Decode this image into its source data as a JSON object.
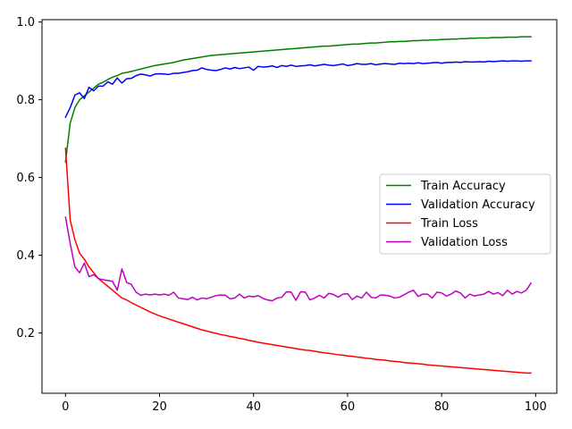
{
  "chart_data": {
    "type": "line",
    "title": "",
    "xlabel": "",
    "ylabel": "",
    "xlim": [
      -5,
      104.5
    ],
    "ylim": [
      0.045,
      1.006
    ],
    "xticks": [
      0,
      20,
      40,
      60,
      80,
      100
    ],
    "yticks": [
      0.2,
      0.4,
      0.6,
      0.8,
      1.0
    ],
    "xtick_labels": [
      "0",
      "20",
      "40",
      "60",
      "80",
      "100"
    ],
    "ytick_labels": [
      "0.2",
      "0.4",
      "0.6",
      "0.8",
      "1.0"
    ],
    "grid": false,
    "legend_position": "center-right",
    "x": [
      0,
      1,
      2,
      3,
      4,
      5,
      6,
      7,
      8,
      9,
      10,
      11,
      12,
      13,
      14,
      15,
      16,
      17,
      18,
      19,
      20,
      21,
      22,
      23,
      24,
      25,
      26,
      27,
      28,
      29,
      30,
      31,
      32,
      33,
      34,
      35,
      36,
      37,
      38,
      39,
      40,
      41,
      42,
      43,
      44,
      45,
      46,
      47,
      48,
      49,
      50,
      51,
      52,
      53,
      54,
      55,
      56,
      57,
      58,
      59,
      60,
      61,
      62,
      63,
      64,
      65,
      66,
      67,
      68,
      69,
      70,
      71,
      72,
      73,
      74,
      75,
      76,
      77,
      78,
      79,
      80,
      81,
      82,
      83,
      84,
      85,
      86,
      87,
      88,
      89,
      90,
      91,
      92,
      93,
      94,
      95,
      96,
      97,
      98,
      99
    ],
    "series": [
      {
        "name": "Train Accuracy",
        "color": "#008000",
        "values": [
          0.64,
          0.74,
          0.78,
          0.8,
          0.81,
          0.82,
          0.83,
          0.84,
          0.845,
          0.852,
          0.858,
          0.862,
          0.868,
          0.87,
          0.873,
          0.876,
          0.879,
          0.882,
          0.885,
          0.888,
          0.89,
          0.892,
          0.894,
          0.896,
          0.899,
          0.902,
          0.904,
          0.906,
          0.908,
          0.91,
          0.912,
          0.914,
          0.915,
          0.916,
          0.917,
          0.918,
          0.919,
          0.92,
          0.921,
          0.922,
          0.923,
          0.924,
          0.925,
          0.926,
          0.927,
          0.928,
          0.929,
          0.93,
          0.931,
          0.932,
          0.933,
          0.934,
          0.935,
          0.936,
          0.937,
          0.938,
          0.938,
          0.939,
          0.94,
          0.941,
          0.942,
          0.943,
          0.943,
          0.944,
          0.945,
          0.946,
          0.946,
          0.947,
          0.948,
          0.949,
          0.949,
          0.95,
          0.95,
          0.951,
          0.952,
          0.952,
          0.953,
          0.953,
          0.954,
          0.954,
          0.955,
          0.955,
          0.956,
          0.956,
          0.957,
          0.957,
          0.958,
          0.958,
          0.959,
          0.959,
          0.959,
          0.96,
          0.96,
          0.96,
          0.961,
          0.961,
          0.961,
          0.962,
          0.962,
          0.962
        ]
      },
      {
        "name": "Validation Accuracy",
        "color": "#0000ff",
        "values": [
          0.755,
          0.78,
          0.812,
          0.818,
          0.803,
          0.832,
          0.823,
          0.835,
          0.835,
          0.846,
          0.84,
          0.856,
          0.843,
          0.854,
          0.855,
          0.862,
          0.866,
          0.864,
          0.861,
          0.866,
          0.867,
          0.866,
          0.865,
          0.868,
          0.868,
          0.87,
          0.872,
          0.875,
          0.876,
          0.882,
          0.878,
          0.876,
          0.875,
          0.878,
          0.882,
          0.879,
          0.883,
          0.88,
          0.882,
          0.884,
          0.876,
          0.886,
          0.884,
          0.885,
          0.887,
          0.883,
          0.888,
          0.886,
          0.889,
          0.886,
          0.887,
          0.888,
          0.89,
          0.887,
          0.889,
          0.891,
          0.889,
          0.888,
          0.89,
          0.892,
          0.888,
          0.89,
          0.893,
          0.891,
          0.891,
          0.893,
          0.89,
          0.892,
          0.893,
          0.892,
          0.891,
          0.894,
          0.893,
          0.894,
          0.893,
          0.895,
          0.893,
          0.894,
          0.895,
          0.896,
          0.894,
          0.896,
          0.896,
          0.897,
          0.896,
          0.898,
          0.897,
          0.897,
          0.898,
          0.897,
          0.899,
          0.898,
          0.899,
          0.9,
          0.899,
          0.9,
          0.9,
          0.899,
          0.9,
          0.9
        ]
      },
      {
        "name": "Train Loss",
        "color": "#ff0000",
        "values": [
          0.675,
          0.49,
          0.44,
          0.405,
          0.39,
          0.37,
          0.355,
          0.34,
          0.33,
          0.32,
          0.31,
          0.3,
          0.29,
          0.285,
          0.278,
          0.272,
          0.266,
          0.26,
          0.254,
          0.249,
          0.244,
          0.24,
          0.236,
          0.232,
          0.228,
          0.224,
          0.22,
          0.216,
          0.212,
          0.208,
          0.205,
          0.202,
          0.199,
          0.196,
          0.194,
          0.191,
          0.189,
          0.186,
          0.184,
          0.181,
          0.179,
          0.176,
          0.174,
          0.172,
          0.17,
          0.168,
          0.166,
          0.164,
          0.162,
          0.16,
          0.158,
          0.156,
          0.155,
          0.153,
          0.151,
          0.149,
          0.148,
          0.146,
          0.144,
          0.143,
          0.141,
          0.14,
          0.138,
          0.137,
          0.135,
          0.134,
          0.132,
          0.131,
          0.13,
          0.128,
          0.127,
          0.126,
          0.124,
          0.123,
          0.122,
          0.121,
          0.12,
          0.118,
          0.117,
          0.116,
          0.115,
          0.114,
          0.113,
          0.112,
          0.111,
          0.11,
          0.109,
          0.108,
          0.107,
          0.106,
          0.105,
          0.104,
          0.103,
          0.102,
          0.101,
          0.1,
          0.099,
          0.098,
          0.097,
          0.097
        ]
      },
      {
        "name": "Validation Loss",
        "color": "#bf00bf",
        "values": [
          0.498,
          0.43,
          0.37,
          0.355,
          0.38,
          0.345,
          0.35,
          0.34,
          0.337,
          0.335,
          0.333,
          0.31,
          0.365,
          0.33,
          0.325,
          0.305,
          0.297,
          0.3,
          0.298,
          0.3,
          0.298,
          0.3,
          0.297,
          0.305,
          0.29,
          0.288,
          0.286,
          0.292,
          0.285,
          0.29,
          0.288,
          0.292,
          0.296,
          0.298,
          0.297,
          0.288,
          0.29,
          0.3,
          0.29,
          0.295,
          0.293,
          0.296,
          0.289,
          0.285,
          0.283,
          0.29,
          0.292,
          0.306,
          0.305,
          0.284,
          0.306,
          0.305,
          0.285,
          0.29,
          0.297,
          0.29,
          0.302,
          0.299,
          0.292,
          0.3,
          0.301,
          0.286,
          0.295,
          0.29,
          0.305,
          0.292,
          0.29,
          0.298,
          0.297,
          0.295,
          0.29,
          0.292,
          0.298,
          0.305,
          0.31,
          0.294,
          0.3,
          0.3,
          0.29,
          0.305,
          0.303,
          0.295,
          0.3,
          0.308,
          0.303,
          0.29,
          0.3,
          0.295,
          0.298,
          0.3,
          0.307,
          0.3,
          0.304,
          0.296,
          0.31,
          0.3,
          0.307,
          0.303,
          0.31,
          0.328
        ]
      }
    ]
  }
}
